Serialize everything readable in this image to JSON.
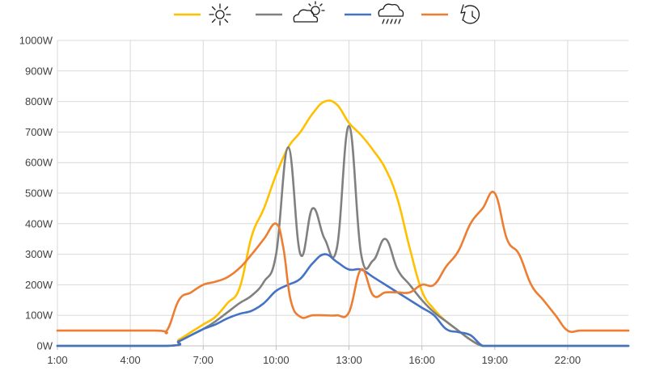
{
  "chart_data": {
    "type": "line",
    "title": "",
    "xlabel": "",
    "ylabel": "",
    "x_ticks": [
      "1:00",
      "4:00",
      "7:00",
      "10:00",
      "13:00",
      "16:00",
      "19:00",
      "22:00"
    ],
    "x_tick_hours": [
      1,
      4,
      7,
      10,
      13,
      16,
      19,
      22
    ],
    "xlim": [
      1,
      24.5
    ],
    "y_ticks": [
      "0W",
      "100W",
      "200W",
      "300W",
      "400W",
      "500W",
      "600W",
      "700W",
      "800W",
      "900W",
      "1000W"
    ],
    "y_tick_values": [
      0,
      100,
      200,
      300,
      400,
      500,
      600,
      700,
      800,
      900,
      1000
    ],
    "ylim": [
      0,
      1000
    ],
    "grid": true,
    "legend_position": "top",
    "series": [
      {
        "icon": "sun-icon",
        "color": "#ffc000",
        "x": [
          1,
          5.5,
          6,
          6.5,
          7,
          7.5,
          8,
          8.5,
          9,
          9.5,
          10,
          10.5,
          11,
          11.5,
          12,
          12.5,
          13,
          13.5,
          14,
          14.5,
          15,
          15.5,
          16,
          16.5,
          17,
          17.5,
          18,
          18.5,
          19,
          20,
          21,
          22,
          23,
          24.5
        ],
        "y": [
          0,
          0,
          20,
          45,
          70,
          95,
          140,
          190,
          360,
          450,
          560,
          650,
          700,
          760,
          800,
          790,
          730,
          690,
          640,
          580,
          480,
          320,
          180,
          120,
          80,
          50,
          20,
          0,
          0,
          0,
          0,
          0,
          0,
          0
        ]
      },
      {
        "icon": "partly-cloudy-icon",
        "color": "#808080",
        "x": [
          1,
          5.5,
          6,
          6.5,
          7,
          7.5,
          8,
          8.5,
          9,
          9.5,
          10,
          10.5,
          11,
          11.5,
          12,
          12.5,
          13,
          13.5,
          14,
          14.5,
          15,
          15.5,
          16,
          16.5,
          17,
          17.5,
          18,
          18.5,
          19,
          20,
          21,
          22,
          23,
          24.5
        ],
        "y": [
          0,
          0,
          15,
          35,
          55,
          80,
          110,
          140,
          165,
          210,
          300,
          650,
          300,
          450,
          350,
          320,
          720,
          300,
          280,
          350,
          250,
          200,
          150,
          110,
          80,
          50,
          20,
          0,
          0,
          0,
          0,
          0,
          0,
          0
        ]
      },
      {
        "icon": "rain-cloud-icon",
        "color": "#4472c4",
        "x": [
          1,
          5.5,
          6,
          6.5,
          7,
          7.5,
          8,
          8.5,
          9,
          9.5,
          10,
          10.5,
          11,
          11.5,
          12,
          12.5,
          13,
          13.5,
          14,
          14.5,
          15,
          15.5,
          16,
          16.5,
          17,
          17.5,
          18,
          18.5,
          19,
          20,
          21,
          22,
          23,
          24.5
        ],
        "y": [
          0,
          0,
          15,
          35,
          55,
          70,
          90,
          105,
          115,
          140,
          180,
          200,
          220,
          270,
          300,
          275,
          250,
          250,
          225,
          200,
          175,
          150,
          125,
          100,
          55,
          45,
          35,
          0,
          0,
          0,
          0,
          0,
          0,
          0
        ]
      },
      {
        "icon": "storm-clock-icon",
        "color": "#ed7d31",
        "x": [
          1,
          5,
          5.5,
          6,
          6.5,
          7,
          7.5,
          8,
          8.5,
          9,
          9.5,
          10,
          10.3,
          10.6,
          11,
          11.5,
          12,
          12.5,
          13,
          13.5,
          14,
          14.5,
          15,
          15.5,
          16,
          16.5,
          17,
          17.5,
          18,
          18.5,
          19,
          19.5,
          20,
          20.5,
          21,
          21.5,
          22,
          22.5,
          23,
          24.5
        ],
        "y": [
          50,
          50,
          50,
          150,
          175,
          200,
          210,
          225,
          255,
          300,
          350,
          400,
          320,
          150,
          95,
          100,
          100,
          100,
          110,
          250,
          165,
          175,
          175,
          175,
          200,
          200,
          260,
          310,
          400,
          450,
          500,
          350,
          300,
          200,
          150,
          100,
          50,
          50,
          50,
          50
        ]
      }
    ]
  }
}
